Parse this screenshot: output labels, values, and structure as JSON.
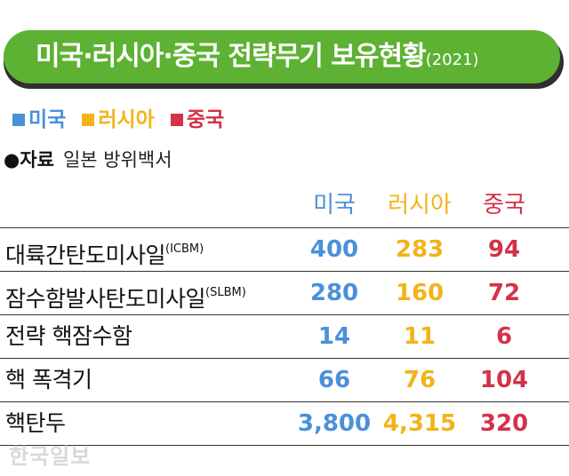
{
  "title": "미국·러시아·중국 전략무기 보유현황",
  "title_year": "(2021)",
  "legend": [
    {
      "label": "미국",
      "color": "#4a90d9"
    },
    {
      "label": "러시아",
      "color": "#f2b31b"
    },
    {
      "label": "중국",
      "color": "#d4324a"
    }
  ],
  "source_label": "●자료",
  "source_text": "일본 방위백서",
  "watermark": "한국일보",
  "colors": {
    "us": "#4a90d9",
    "russia": "#f2b31b",
    "china": "#d4324a",
    "banner": "#5db133"
  },
  "chart_data": {
    "type": "table",
    "columns": [
      "미국",
      "러시아",
      "중국"
    ],
    "rows": [
      {
        "label": "대륙간탄도미사일",
        "sub": "(ICBM)",
        "values": [
          "400",
          "283",
          "94"
        ]
      },
      {
        "label": "잠수함발사탄도미사일",
        "sub": "(SLBM)",
        "values": [
          "280",
          "160",
          "72"
        ]
      },
      {
        "label": "전략 핵잠수함",
        "sub": "",
        "values": [
          "14",
          "11",
          "6"
        ]
      },
      {
        "label": "핵 폭격기",
        "sub": "",
        "values": [
          "66",
          "76",
          "104"
        ]
      },
      {
        "label": "핵탄두",
        "sub": "",
        "values": [
          "3,800",
          "4,315",
          "320"
        ]
      }
    ]
  }
}
